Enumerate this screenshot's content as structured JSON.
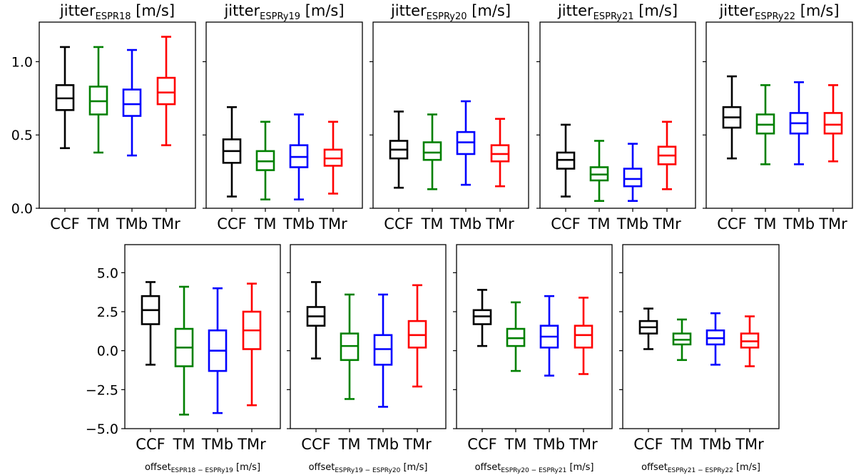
{
  "colors": {
    "CCF": "#000000",
    "TM": "#008000",
    "TMb": "#0000ff",
    "TMr": "#ff0000"
  },
  "chart_data": [
    {
      "type": "box",
      "title_base": "jitter",
      "title_sub": "ESPR18",
      "title_unit": "[m/s]",
      "categories": [
        "CCF",
        "TM",
        "TMb",
        "TMr"
      ],
      "ylim": [
        0.0,
        1.27
      ],
      "yticks": [
        "0.0",
        "0.5",
        "1.0"
      ],
      "ytick_values": [
        0.0,
        0.5,
        1.0
      ],
      "boxes": [
        {
          "whisker_low": 0.41,
          "q1": 0.67,
          "median": 0.75,
          "q3": 0.84,
          "whisker_high": 1.1
        },
        {
          "whisker_low": 0.38,
          "q1": 0.64,
          "median": 0.73,
          "q3": 0.83,
          "whisker_high": 1.1
        },
        {
          "whisker_low": 0.36,
          "q1": 0.63,
          "median": 0.71,
          "q3": 0.81,
          "whisker_high": 1.08
        },
        {
          "whisker_low": 0.43,
          "q1": 0.71,
          "median": 0.79,
          "q3": 0.89,
          "whisker_high": 1.17
        }
      ]
    },
    {
      "type": "box",
      "title_base": "jitter",
      "title_sub": "ESPRy19",
      "title_unit": "[m/s]",
      "categories": [
        "CCF",
        "TM",
        "TMb",
        "TMr"
      ],
      "ylim": [
        0.0,
        1.27
      ],
      "boxes": [
        {
          "whisker_low": 0.08,
          "q1": 0.31,
          "median": 0.39,
          "q3": 0.47,
          "whisker_high": 0.69
        },
        {
          "whisker_low": 0.06,
          "q1": 0.26,
          "median": 0.32,
          "q3": 0.39,
          "whisker_high": 0.59
        },
        {
          "whisker_low": 0.06,
          "q1": 0.28,
          "median": 0.35,
          "q3": 0.43,
          "whisker_high": 0.64
        },
        {
          "whisker_low": 0.1,
          "q1": 0.29,
          "median": 0.34,
          "q3": 0.4,
          "whisker_high": 0.59
        }
      ]
    },
    {
      "type": "box",
      "title_base": "jitter",
      "title_sub": "ESPRy20",
      "title_unit": "[m/s]",
      "categories": [
        "CCF",
        "TM",
        "TMb",
        "TMr"
      ],
      "ylim": [
        0.0,
        1.27
      ],
      "boxes": [
        {
          "whisker_low": 0.14,
          "q1": 0.34,
          "median": 0.4,
          "q3": 0.46,
          "whisker_high": 0.66
        },
        {
          "whisker_low": 0.13,
          "q1": 0.33,
          "median": 0.38,
          "q3": 0.45,
          "whisker_high": 0.64
        },
        {
          "whisker_low": 0.16,
          "q1": 0.37,
          "median": 0.45,
          "q3": 0.52,
          "whisker_high": 0.73
        },
        {
          "whisker_low": 0.15,
          "q1": 0.32,
          "median": 0.37,
          "q3": 0.43,
          "whisker_high": 0.61
        }
      ]
    },
    {
      "type": "box",
      "title_base": "jitter",
      "title_sub": "ESPRy21",
      "title_unit": "[m/s]",
      "categories": [
        "CCF",
        "TM",
        "TMb",
        "TMr"
      ],
      "ylim": [
        0.0,
        1.27
      ],
      "boxes": [
        {
          "whisker_low": 0.08,
          "q1": 0.27,
          "median": 0.33,
          "q3": 0.38,
          "whisker_high": 0.57
        },
        {
          "whisker_low": 0.05,
          "q1": 0.19,
          "median": 0.23,
          "q3": 0.28,
          "whisker_high": 0.46
        },
        {
          "whisker_low": 0.05,
          "q1": 0.15,
          "median": 0.2,
          "q3": 0.27,
          "whisker_high": 0.44
        },
        {
          "whisker_low": 0.13,
          "q1": 0.3,
          "median": 0.36,
          "q3": 0.42,
          "whisker_high": 0.59
        }
      ]
    },
    {
      "type": "box",
      "title_base": "jitter",
      "title_sub": "ESPRy22",
      "title_unit": "[m/s]",
      "categories": [
        "CCF",
        "TM",
        "TMb",
        "TMr"
      ],
      "ylim": [
        0.0,
        1.27
      ],
      "boxes": [
        {
          "whisker_low": 0.34,
          "q1": 0.55,
          "median": 0.62,
          "q3": 0.69,
          "whisker_high": 0.9
        },
        {
          "whisker_low": 0.3,
          "q1": 0.51,
          "median": 0.57,
          "q3": 0.64,
          "whisker_high": 0.84
        },
        {
          "whisker_low": 0.3,
          "q1": 0.51,
          "median": 0.58,
          "q3": 0.65,
          "whisker_high": 0.86
        },
        {
          "whisker_low": 0.32,
          "q1": 0.51,
          "median": 0.57,
          "q3": 0.65,
          "whisker_high": 0.84
        }
      ]
    },
    {
      "type": "box",
      "xlabel_base": "offset",
      "xlabel_sub": "ESPR18 − ESPRy19",
      "xlabel_unit": "[m/s]",
      "categories": [
        "CCF",
        "TM",
        "TMb",
        "TMr"
      ],
      "ylim": [
        -5.0,
        6.8
      ],
      "yticks": [
        "−5.0",
        "−2.5",
        "0.0",
        "2.5",
        "5.0"
      ],
      "ytick_values": [
        -5.0,
        -2.5,
        0.0,
        2.5,
        5.0
      ],
      "boxes": [
        {
          "whisker_low": -0.9,
          "q1": 1.7,
          "median": 2.6,
          "q3": 3.5,
          "whisker_high": 4.4
        },
        {
          "whisker_low": -4.1,
          "q1": -1.0,
          "median": 0.2,
          "q3": 1.4,
          "whisker_high": 4.1
        },
        {
          "whisker_low": -4.0,
          "q1": -1.3,
          "median": 0.0,
          "q3": 1.3,
          "whisker_high": 4.0
        },
        {
          "whisker_low": -3.5,
          "q1": 0.1,
          "median": 1.3,
          "q3": 2.5,
          "whisker_high": 4.3
        }
      ]
    },
    {
      "type": "box",
      "xlabel_base": "offset",
      "xlabel_sub": "ESPRy19 − ESPRy20",
      "xlabel_unit": "[m/s]",
      "categories": [
        "CCF",
        "TM",
        "TMb",
        "TMr"
      ],
      "ylim": [
        -5.0,
        6.8
      ],
      "boxes": [
        {
          "whisker_low": -0.5,
          "q1": 1.6,
          "median": 2.2,
          "q3": 2.8,
          "whisker_high": 4.4
        },
        {
          "whisker_low": -3.1,
          "q1": -0.6,
          "median": 0.3,
          "q3": 1.1,
          "whisker_high": 3.6
        },
        {
          "whisker_low": -3.6,
          "q1": -0.9,
          "median": 0.1,
          "q3": 1.0,
          "whisker_high": 3.6
        },
        {
          "whisker_low": -2.3,
          "q1": 0.2,
          "median": 1.0,
          "q3": 1.9,
          "whisker_high": 4.2
        }
      ]
    },
    {
      "type": "box",
      "xlabel_base": "offset",
      "xlabel_sub": "ESPRy20 − ESPRy21",
      "xlabel_unit": "[m/s]",
      "categories": [
        "CCF",
        "TM",
        "TMb",
        "TMr"
      ],
      "ylim": [
        -5.0,
        6.8
      ],
      "boxes": [
        {
          "whisker_low": 0.3,
          "q1": 1.7,
          "median": 2.2,
          "q3": 2.6,
          "whisker_high": 3.9
        },
        {
          "whisker_low": -1.3,
          "q1": 0.3,
          "median": 0.8,
          "q3": 1.4,
          "whisker_high": 3.1
        },
        {
          "whisker_low": -1.6,
          "q1": 0.2,
          "median": 0.9,
          "q3": 1.6,
          "whisker_high": 3.5
        },
        {
          "whisker_low": -1.5,
          "q1": 0.2,
          "median": 1.0,
          "q3": 1.6,
          "whisker_high": 3.4
        }
      ]
    },
    {
      "type": "box",
      "xlabel_base": "offset",
      "xlabel_sub": "ESPRy21 − ESPRy22",
      "xlabel_unit": "[m/s]",
      "categories": [
        "CCF",
        "TM",
        "TMb",
        "TMr"
      ],
      "ylim": [
        -5.0,
        6.8
      ],
      "boxes": [
        {
          "whisker_low": 0.1,
          "q1": 1.1,
          "median": 1.5,
          "q3": 1.9,
          "whisker_high": 2.7
        },
        {
          "whisker_low": -0.6,
          "q1": 0.4,
          "median": 0.7,
          "q3": 1.1,
          "whisker_high": 2.0
        },
        {
          "whisker_low": -0.9,
          "q1": 0.4,
          "median": 0.8,
          "q3": 1.3,
          "whisker_high": 2.4
        },
        {
          "whisker_low": -1.0,
          "q1": 0.2,
          "median": 0.6,
          "q3": 1.1,
          "whisker_high": 2.2
        }
      ]
    }
  ]
}
